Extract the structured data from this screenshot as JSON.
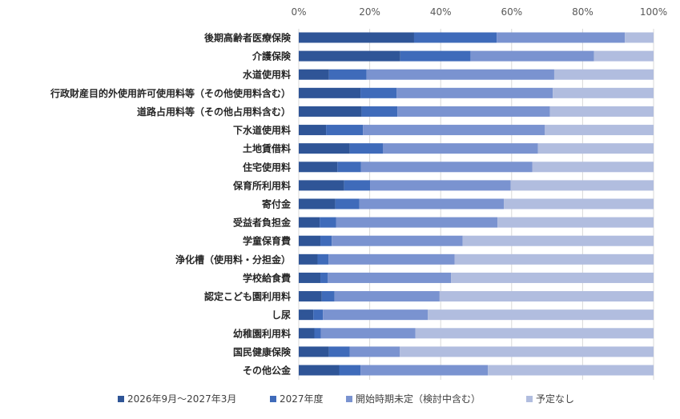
{
  "chart_data": {
    "type": "bar",
    "orientation": "horizontal",
    "stacked": "percent",
    "xlim": [
      0,
      100
    ],
    "x_ticks": [
      "0%",
      "20%",
      "40%",
      "60%",
      "80%",
      "100%"
    ],
    "grid": true,
    "legend_position": "bottom",
    "categories": [
      "後期高齢者医療保険",
      "介護保険",
      "水道使用料",
      "行政財産目的外使用許可使用料等（その他使用料含む）",
      "道路占用料等（その他占用料含む）",
      "下水道使用料",
      "土地賃借料",
      "住宅使用料",
      "保育所利用料",
      "寄付金",
      "受益者負担金",
      "学童保育費",
      "浄化槽（使用料・分担金）",
      "学校給食費",
      "認定こども園利用料",
      "し尿",
      "幼稚園利用料",
      "国民健康保険",
      "その他公金"
    ],
    "series": [
      {
        "name": "2026年9月～2027年3月",
        "color": "#2F5597",
        "values": [
          32.5,
          28.6,
          8.5,
          17.4,
          17.7,
          7.7,
          14.4,
          10.9,
          12.8,
          10.3,
          5.9,
          6.1,
          5.3,
          6.1,
          6.5,
          4.1,
          4.4,
          8.5,
          11.4
        ]
      },
      {
        "name": "2027年度",
        "color": "#3F6BBA",
        "values": [
          23.3,
          19.8,
          10.6,
          10.2,
          10.1,
          10.4,
          9.3,
          6.6,
          7.3,
          6.8,
          4.6,
          3.2,
          3.1,
          2.1,
          3.6,
          2.7,
          1.8,
          5.9,
          6.0
        ]
      },
      {
        "name": "開始時期未定（検討中含む）",
        "color": "#7A93D0",
        "values": [
          36.1,
          34.8,
          52.9,
          44.0,
          43.0,
          51.2,
          43.7,
          48.3,
          39.6,
          40.7,
          45.5,
          36.9,
          35.5,
          34.7,
          29.6,
          29.6,
          26.7,
          14.1,
          35.9
        ]
      },
      {
        "name": "予定なし",
        "color": "#B1BDDF",
        "values": [
          8.1,
          16.8,
          28.0,
          28.4,
          29.2,
          30.7,
          32.6,
          34.2,
          40.3,
          42.2,
          44.0,
          53.8,
          56.1,
          57.1,
          60.3,
          63.6,
          67.1,
          71.5,
          46.7
        ]
      }
    ]
  }
}
